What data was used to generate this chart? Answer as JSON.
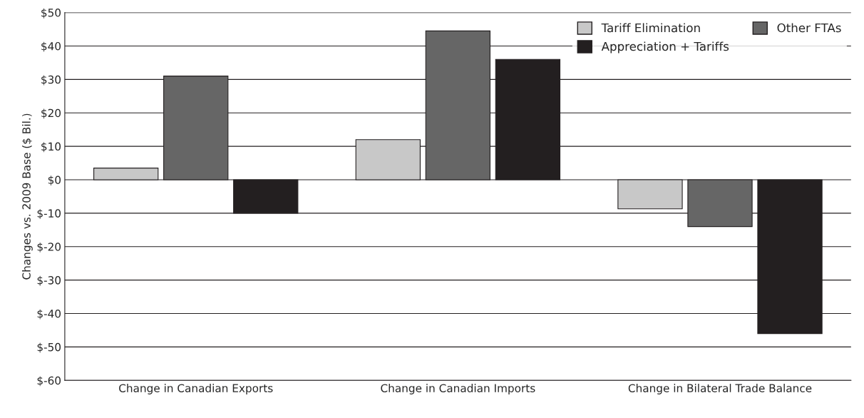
{
  "chart_data": {
    "type": "bar",
    "ylabel": "Changes vs. 2009 Base ($ Bil.)",
    "categories": [
      "Change in Canadian Exports",
      "Change in Canadian Imports",
      "Change in Bilateral Trade Balance"
    ],
    "series": [
      {
        "name": "Tariff Elimination",
        "color": "#c8c8c8",
        "values": [
          3.5,
          12,
          -8.7
        ]
      },
      {
        "name": "Other FTAs",
        "color": "#666666",
        "values": [
          31,
          44.5,
          -14
        ]
      },
      {
        "name": "Appreciation + Tariffs",
        "color": "#231f20",
        "values": [
          -10,
          36,
          -46
        ]
      }
    ],
    "ylim": [
      -60,
      50
    ],
    "yticks": [
      {
        "value": -60,
        "label": "$-60"
      },
      {
        "value": -50,
        "label": "$-50"
      },
      {
        "value": -40,
        "label": "$-40"
      },
      {
        "value": -30,
        "label": "$-30"
      },
      {
        "value": -20,
        "label": "$-20"
      },
      {
        "value": -10,
        "label": "$-10"
      },
      {
        "value": 0,
        "label": "$0"
      },
      {
        "value": 10,
        "label": "$10"
      },
      {
        "value": 20,
        "label": "$20"
      },
      {
        "value": 30,
        "label": "$30"
      },
      {
        "value": 40,
        "label": "$40"
      },
      {
        "value": 50,
        "label": "$50"
      }
    ],
    "grid": "y",
    "legend": "top right"
  }
}
